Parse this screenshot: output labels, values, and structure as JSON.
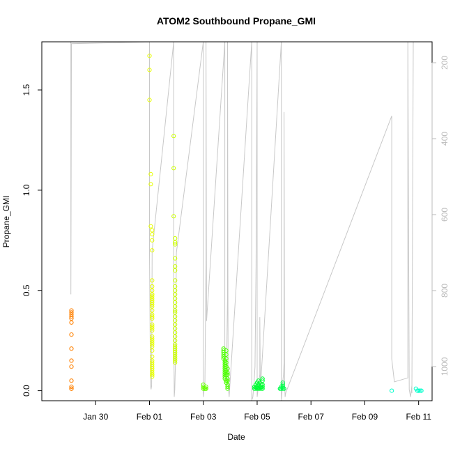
{
  "chart_data": {
    "type": "scatter",
    "title": "ATOM2 Southbound Propane_GMI",
    "xlabel": "Date",
    "ylabel": "Propane_GMI",
    "x_unit": "days",
    "xlim": [
      28.0,
      42.5
    ],
    "ylim": [
      -0.05,
      1.74
    ],
    "x_ticks": [
      {
        "x": 30,
        "label": "Jan 30"
      },
      {
        "x": 32,
        "label": "Feb 01"
      },
      {
        "x": 34,
        "label": "Feb 03"
      },
      {
        "x": 36,
        "label": "Feb 05"
      },
      {
        "x": 38,
        "label": "Feb 07"
      },
      {
        "x": 40,
        "label": "Feb 09"
      },
      {
        "x": 42,
        "label": "Feb 11"
      }
    ],
    "y_ticks": [
      {
        "y": 0.0,
        "label": "0.0"
      },
      {
        "y": 0.5,
        "label": "0.5"
      },
      {
        "y": 1.0,
        "label": "1.0"
      },
      {
        "y": 1.5,
        "label": "1.5"
      }
    ],
    "right_axis": {
      "color": "#bbbbbb",
      "reversed": true,
      "lim": [
        1090,
        145
      ],
      "ticks": [
        200,
        400,
        600,
        800,
        1000
      ]
    },
    "grid": false,
    "series": [
      {
        "color": "#ff8000",
        "x": [
          29.1,
          29.1,
          29.1,
          29.1,
          29.1,
          29.1,
          29.1,
          29.1,
          29.1,
          29.1,
          29.1,
          29.1,
          29.1,
          29.1,
          29.1
        ],
        "y": [
          0.4,
          0.39,
          0.38,
          0.37,
          0.36,
          0.34,
          0.28,
          0.21,
          0.15,
          0.12,
          0.05,
          0.02,
          0.01,
          0.01,
          0.01
        ]
      },
      {
        "color": "#e6ff00",
        "x": [
          32.0,
          32.0,
          32.0,
          32.05,
          32.05,
          32.05,
          32.1,
          32.1,
          32.1,
          32.1,
          32.1,
          32.1,
          32.1,
          32.1,
          32.1,
          32.1,
          32.1,
          32.1,
          32.1,
          32.1,
          32.1,
          32.1,
          32.1,
          32.1,
          32.1,
          32.1,
          32.1,
          32.1,
          32.1,
          32.1,
          32.1,
          32.1,
          32.1,
          32.1,
          32.1,
          32.1,
          32.1,
          32.1,
          32.1,
          32.1,
          32.1,
          32.1,
          32.1,
          32.1,
          32.1,
          32.1,
          32.1
        ],
        "y": [
          1.67,
          1.6,
          1.45,
          1.08,
          1.03,
          0.82,
          0.8,
          0.78,
          0.75,
          0.7,
          0.55,
          0.52,
          0.5,
          0.48,
          0.47,
          0.46,
          0.45,
          0.44,
          0.42,
          0.4,
          0.38,
          0.36,
          0.33,
          0.31,
          0.3,
          0.27,
          0.26,
          0.25,
          0.24,
          0.23,
          0.22,
          0.2,
          0.17,
          0.15,
          0.14,
          0.13,
          0.12,
          0.11,
          0.1,
          0.09,
          0.08,
          0.08,
          0.07,
          0.48,
          0.43,
          0.37,
          0.32
        ]
      },
      {
        "color": "#ccff00",
        "x": [
          32.9,
          32.9,
          32.9,
          32.95,
          32.95,
          32.95,
          32.95,
          32.95,
          32.95,
          32.95,
          32.95,
          32.95,
          32.95,
          32.95,
          32.95,
          32.95,
          32.95,
          32.95,
          32.95,
          32.95,
          32.95,
          32.95,
          32.95,
          32.95,
          32.95,
          32.95,
          32.95,
          32.95,
          32.95,
          32.95,
          32.95,
          32.95,
          32.95,
          32.95,
          32.95
        ],
        "y": [
          1.27,
          1.11,
          0.87,
          0.76,
          0.74,
          0.73,
          0.66,
          0.62,
          0.6,
          0.55,
          0.52,
          0.5,
          0.48,
          0.46,
          0.44,
          0.42,
          0.4,
          0.39,
          0.37,
          0.35,
          0.33,
          0.31,
          0.29,
          0.27,
          0.25,
          0.23,
          0.21,
          0.2,
          0.19,
          0.18,
          0.17,
          0.16,
          0.15,
          0.14,
          0.22
        ]
      },
      {
        "color": "#66ff00",
        "x": [
          34.0,
          34.0,
          34.0,
          34.05,
          34.05,
          34.1,
          34.1,
          34.1,
          34.1
        ],
        "y": [
          0.03,
          0.02,
          0.01,
          0.01,
          0.01,
          0.01,
          0.01,
          0.01,
          0.02
        ]
      },
      {
        "color": "#4cff00",
        "x": [
          34.75,
          34.75,
          34.75,
          34.75,
          34.75,
          34.75,
          34.8,
          34.8,
          34.8,
          34.8,
          34.8,
          34.8,
          34.8,
          34.8,
          34.8,
          34.8,
          34.85,
          34.85,
          34.85,
          34.85,
          34.85,
          34.85,
          34.85,
          34.85,
          34.85,
          34.9,
          34.9,
          34.9,
          34.9,
          34.9,
          34.9,
          34.9,
          34.9
        ],
        "y": [
          0.21,
          0.2,
          0.19,
          0.18,
          0.17,
          0.16,
          0.15,
          0.14,
          0.13,
          0.12,
          0.11,
          0.1,
          0.09,
          0.08,
          0.07,
          0.06,
          0.05,
          0.04,
          0.2,
          0.18,
          0.16,
          0.14,
          0.12,
          0.1,
          0.08,
          0.11,
          0.09,
          0.08,
          0.06,
          0.05,
          0.03,
          0.02,
          0.01
        ]
      },
      {
        "color": "#00ff33",
        "x": [
          35.9,
          35.9,
          35.95,
          35.95,
          35.95,
          36.0,
          36.0,
          36.0,
          36.05,
          36.05,
          36.05,
          36.1,
          36.1,
          36.1,
          36.15,
          36.15,
          36.15,
          36.2,
          36.2,
          36.2,
          36.2,
          36.2
        ],
        "y": [
          0.01,
          0.02,
          0.01,
          0.02,
          0.03,
          0.01,
          0.02,
          0.04,
          0.01,
          0.03,
          0.05,
          0.01,
          0.02,
          0.04,
          0.01,
          0.02,
          0.03,
          0.01,
          0.02,
          0.03,
          0.05,
          0.06
        ]
      },
      {
        "color": "#00ff4c",
        "x": [
          36.85,
          36.85,
          36.9,
          36.9,
          36.9,
          36.95,
          36.95,
          36.95,
          36.95,
          37.0,
          37.0
        ],
        "y": [
          0.01,
          0.01,
          0.01,
          0.02,
          0.01,
          0.01,
          0.02,
          0.03,
          0.04,
          0.01,
          0.01
        ]
      },
      {
        "color": "#00ffcc",
        "x": [
          41.0,
          41.9,
          41.95,
          42.0,
          42.05,
          42.1
        ],
        "y": [
          0.0,
          0.01,
          0.0,
          0.0,
          0.0,
          0.0
        ]
      }
    ],
    "altitude_line": {
      "color": "#c8c8c8",
      "x": [
        29.08,
        29.08,
        29.1,
        29.1,
        32.0,
        32.0,
        32.02,
        32.04,
        32.06,
        32.08,
        32.1,
        32.9,
        32.9,
        32.92,
        32.94,
        32.96,
        33.0,
        34.0,
        34.0,
        34.03,
        34.06,
        34.1,
        34.1,
        34.12,
        34.8,
        34.8,
        34.82,
        34.84,
        34.86,
        34.9,
        34.9,
        34.92,
        34.94,
        34.96,
        35.8,
        35.8,
        35.84,
        35.88,
        35.92,
        35.96,
        36.0,
        36.0,
        36.1,
        36.1,
        36.12,
        36.9,
        36.9,
        36.94,
        36.98,
        37.0,
        37.0,
        37.02,
        37.04,
        37.06,
        41.0,
        41.0,
        41.1,
        41.6,
        41.6,
        41.65,
        41.7,
        41.75,
        41.75,
        41.8
      ],
      "y": [
        145,
        810,
        180,
        150,
        145,
        700,
        900,
        1050,
        1060,
        1050,
        695,
        145,
        820,
        1080,
        1060,
        1000,
        700,
        145,
        1080,
        1060,
        1050,
        720,
        145,
        880,
        145,
        1000,
        1020,
        1040,
        1030,
        810,
        145,
        1050,
        1060,
        1080,
        145,
        1090,
        1080,
        1050,
        1000,
        730,
        145,
        1080,
        1020,
        870,
        1060,
        145,
        1090,
        1050,
        1020,
        990,
        330,
        1040,
        1080,
        1070,
        340,
        980,
        1040,
        1030,
        145,
        1060,
        1080,
        1050,
        1070,
        145
      ]
    }
  }
}
